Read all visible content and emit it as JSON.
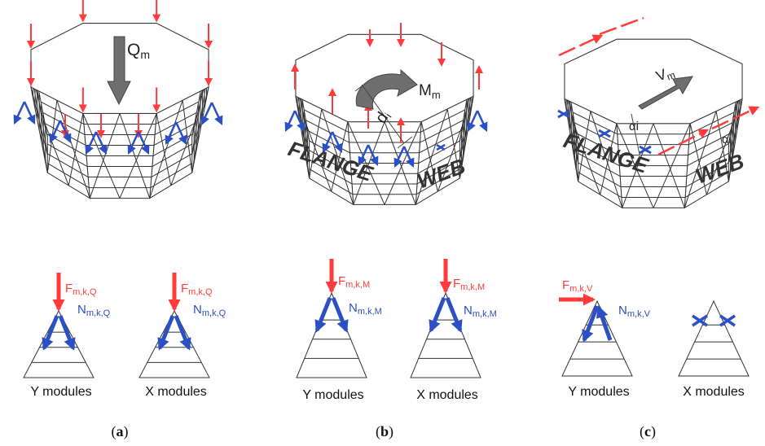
{
  "panels": [
    {
      "caption_open": "(",
      "caption_letter": "a",
      "caption_close": ")",
      "load_symbol": "Q",
      "load_sub": "m",
      "y_force": {
        "main": "F",
        "sub": "m,k,Q"
      },
      "y_normal": {
        "main": "N",
        "sub": "m,k,Q"
      },
      "x_force": {
        "main": "F",
        "sub": "m,k,Q"
      },
      "x_normal": {
        "main": "N",
        "sub": "m,k,Q"
      },
      "y_label": "Y modules",
      "x_label": "X modules"
    },
    {
      "caption_open": "(",
      "caption_letter": "b",
      "caption_close": ")",
      "load_symbol": "M",
      "load_sub": "m",
      "dist_symbol": "d",
      "dist_sub": "i",
      "flange_label": "FLANGE",
      "web_label": "WEB",
      "y_force": {
        "main": "F",
        "sub": "m,k,M"
      },
      "y_normal": {
        "main": "N",
        "sub": "m,k,M"
      },
      "x_force": {
        "main": "F",
        "sub": "m,k,M"
      },
      "x_normal": {
        "main": "N",
        "sub": "m,k,M"
      },
      "y_label": "Y modules",
      "x_label": "X modules"
    },
    {
      "caption_open": "(",
      "caption_letter": "c",
      "caption_close": ")",
      "load_symbol": "V",
      "load_sub": "m",
      "angle_label": "αi",
      "angle_label_2": "αi",
      "flange_label": "FLANGE",
      "web_label": "WEB",
      "y_force": {
        "main": "F",
        "sub": "m,k,V"
      },
      "y_normal": {
        "main": "N",
        "sub": "m,k,V"
      },
      "y_label": "Y modules",
      "x_label": "X modules"
    }
  ],
  "colors": {
    "load_red": "#ff3b3b",
    "normal_blue": "#2b4fc4",
    "line": "#333333",
    "grey_arrow": "#6e6e6e"
  }
}
